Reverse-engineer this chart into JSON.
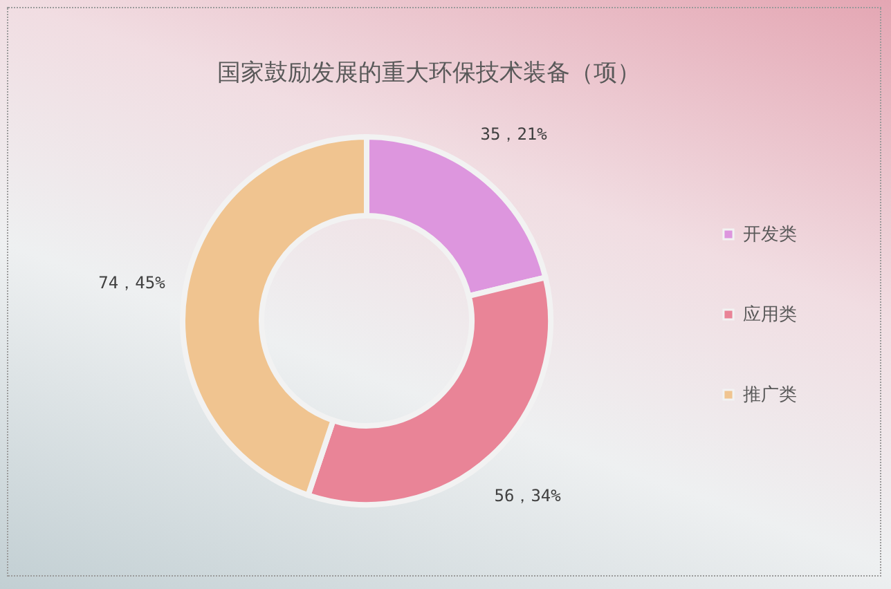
{
  "chart_data": {
    "type": "donut",
    "title": "国家鼓励发展的重大环保技术装备（项）",
    "categories": [
      "开发类",
      "应用类",
      "推广类"
    ],
    "values": [
      35,
      56,
      74
    ],
    "colors": [
      "#dd96de",
      "#e98497",
      "#f0c490"
    ],
    "value_labels": [
      "35，21%",
      "56，34%",
      "74，45%"
    ],
    "legend": "right"
  }
}
